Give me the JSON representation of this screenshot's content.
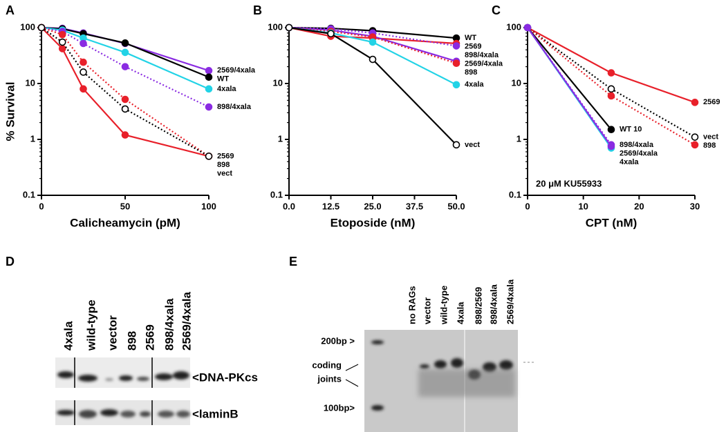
{
  "chart_data": [
    {
      "type": "line",
      "label": "A",
      "x_label": "Calicheamycin (pM)",
      "y_label": "% Survival",
      "log_y": true,
      "x": [
        0,
        12.5,
        25,
        50,
        100
      ],
      "xlim": [
        0,
        100
      ],
      "xticks": [
        0,
        50,
        100
      ],
      "ylim": [
        0.1,
        100
      ],
      "yticks": [
        0.1,
        1,
        10,
        100
      ],
      "series": [
        {
          "name": "2569/4xala",
          "color": "#8a2be2",
          "style": "solid",
          "marker": "filled",
          "values": [
            100,
            97,
            80,
            52,
            17
          ]
        },
        {
          "name": "WT",
          "color": "#000000",
          "style": "solid",
          "marker": "filled",
          "values": [
            100,
            95,
            78,
            53,
            13
          ]
        },
        {
          "name": "4xala",
          "color": "#22d3e6",
          "style": "solid",
          "marker": "filled",
          "values": [
            100,
            90,
            65,
            36,
            8
          ]
        },
        {
          "name": "898/4xala",
          "color": "#8a2be2",
          "style": "dotted",
          "marker": "filled",
          "values": [
            100,
            85,
            52,
            20,
            3.8
          ]
        },
        {
          "name": "2569",
          "color": "#e8202a",
          "style": "solid",
          "marker": "filled",
          "values": [
            100,
            42,
            8,
            1.2,
            0.5
          ]
        },
        {
          "name": "898",
          "color": "#e8202a",
          "style": "dotted",
          "marker": "filled",
          "values": [
            100,
            75,
            24,
            5.2,
            0.5
          ]
        },
        {
          "name": "vect",
          "color": "#000000",
          "style": "dotted",
          "marker": "open",
          "values": [
            100,
            55,
            16,
            3.5,
            0.5
          ]
        }
      ]
    },
    {
      "type": "line",
      "label": "B",
      "x_label": "Etoposide (nM)",
      "log_y": true,
      "x": [
        0,
        12.5,
        25,
        50
      ],
      "xlim": [
        0,
        50
      ],
      "xticks": [
        {
          "value": 0,
          "label": "0.0"
        },
        12.5,
        {
          "value": 25,
          "label": "25.0"
        },
        37.5,
        {
          "value": 50,
          "label": "50.0"
        }
      ],
      "ylim": [
        0.1,
        100
      ],
      "yticks": [
        0.1,
        1,
        10,
        100
      ],
      "series": [
        {
          "name": "WT",
          "color": "#000000",
          "style": "solid",
          "marker": "filled",
          "values": [
            100,
            97,
            88,
            65
          ]
        },
        {
          "name": "2569",
          "color": "#e8202a",
          "style": "solid",
          "marker": "filled",
          "values": [
            100,
            70,
            65,
            52
          ]
        },
        {
          "name": "898/4xala",
          "color": "#8a2be2",
          "style": "dotted",
          "marker": "filled",
          "values": [
            100,
            95,
            80,
            47
          ]
        },
        {
          "name": "2569/4xala",
          "color": "#8a2be2",
          "style": "solid",
          "marker": "filled",
          "values": [
            100,
            90,
            70,
            25
          ]
        },
        {
          "name": "898",
          "color": "#e8202a",
          "style": "dotted",
          "marker": "filled",
          "values": [
            100,
            85,
            68,
            23
          ]
        },
        {
          "name": "4xala",
          "color": "#22d3e6",
          "style": "solid",
          "marker": "filled",
          "values": [
            100,
            80,
            55,
            9.5
          ]
        },
        {
          "name": "vect",
          "color": "#000000",
          "style": "solid",
          "marker": "open",
          "values": [
            100,
            78,
            27,
            0.8
          ]
        }
      ]
    },
    {
      "type": "line",
      "label": "C",
      "x_label": "CPT (nM)",
      "annotation": "20 μM KU55933",
      "log_y": true,
      "x": [
        0,
        15,
        30
      ],
      "xlim": [
        0,
        30
      ],
      "xticks": [
        0,
        10,
        20,
        30
      ],
      "ylim": [
        0.1,
        100
      ],
      "yticks": [
        0.1,
        1,
        10,
        100
      ],
      "series": [
        {
          "name": "2569",
          "color": "#e8202a",
          "style": "solid",
          "marker": "filled",
          "values": [
            100,
            15.5,
            4.6
          ]
        },
        {
          "name": "vect",
          "color": "#000000",
          "style": "dotted",
          "marker": "open",
          "values": [
            100,
            8,
            1.1
          ]
        },
        {
          "name": "898",
          "color": "#e8202a",
          "style": "dotted",
          "marker": "filled",
          "values": [
            100,
            6,
            0.8
          ]
        },
        {
          "name": "WT 10",
          "color": "#000000",
          "style": "solid",
          "marker": "filled",
          "values": [
            100,
            1.5,
            null
          ]
        },
        {
          "name": "898/4xala",
          "color": "#8a2be2",
          "style": "dotted",
          "marker": "filled",
          "values": [
            100,
            0.8,
            null
          ]
        },
        {
          "name": "4xala",
          "color": "#22d3e6",
          "style": "solid",
          "marker": "filled",
          "values": [
            100,
            0.7,
            null
          ]
        },
        {
          "name": "2569/4xala",
          "color": "#8a2be2",
          "style": "solid",
          "marker": "filled",
          "values": [
            100,
            0.75,
            null
          ]
        }
      ]
    }
  ],
  "panel_d": {
    "label": "D",
    "lanes": [
      "4xala",
      "wild-type",
      "vector",
      "898",
      "2569",
      "898/4xala",
      "2569/4xala"
    ],
    "bands": [
      "<DNA-PKcs",
      "<laminB"
    ]
  },
  "panel_e": {
    "label": "E",
    "lanes": [
      "no RAGs",
      "vector",
      "wild-type",
      "4xala",
      "898/2569",
      "898/4xala",
      "2569/4xala"
    ],
    "markers": [
      "200bp >",
      "100bp>"
    ],
    "coding": [
      "coding",
      "joints"
    ]
  }
}
